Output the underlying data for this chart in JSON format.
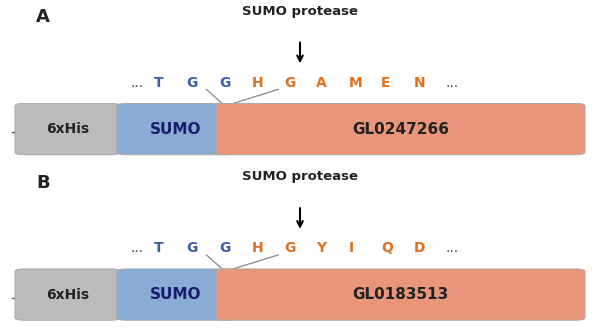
{
  "background_color": "#ffffff",
  "fig_w": 6.0,
  "fig_h": 3.31,
  "dpi": 100,
  "panels": [
    {
      "label": "A",
      "protease_text": "SUMO protease",
      "sequence_items": [
        {
          "char": "...",
          "color": "#444444",
          "bold": false,
          "dot": true
        },
        {
          "char": "T",
          "color": "#3a5ea8",
          "bold": true,
          "dot": false
        },
        {
          "char": "G",
          "color": "#3a5ea8",
          "bold": true,
          "dot": false
        },
        {
          "char": "G",
          "color": "#3a5ea8",
          "bold": true,
          "dot": false
        },
        {
          "char": "H",
          "color": "#e07020",
          "bold": true,
          "dot": false
        },
        {
          "char": "G",
          "color": "#e07020",
          "bold": true,
          "dot": false
        },
        {
          "char": "A",
          "color": "#e07020",
          "bold": true,
          "dot": false
        },
        {
          "char": "M",
          "color": "#e07020",
          "bold": true,
          "dot": false
        },
        {
          "char": "E",
          "color": "#e07020",
          "bold": true,
          "dot": false
        },
        {
          "char": "N",
          "color": "#e07020",
          "bold": true,
          "dot": false
        },
        {
          "char": "...",
          "color": "#444444",
          "bold": false,
          "dot": true
        }
      ],
      "cut_after_index": 3,
      "his_label": "6xHis",
      "sumo_label": "SUMO",
      "target_label": "GL0247266",
      "his_color": "#bbbbbb",
      "sumo_color": "#88acd4",
      "target_color": "#e8957a"
    },
    {
      "label": "B",
      "protease_text": "SUMO protease",
      "sequence_items": [
        {
          "char": "...",
          "color": "#444444",
          "bold": false,
          "dot": true
        },
        {
          "char": "T",
          "color": "#3a5ea8",
          "bold": true,
          "dot": false
        },
        {
          "char": "G",
          "color": "#3a5ea8",
          "bold": true,
          "dot": false
        },
        {
          "char": "G",
          "color": "#3a5ea8",
          "bold": true,
          "dot": false
        },
        {
          "char": "H",
          "color": "#e07020",
          "bold": true,
          "dot": false
        },
        {
          "char": "G",
          "color": "#e07020",
          "bold": true,
          "dot": false
        },
        {
          "char": "Y",
          "color": "#e07020",
          "bold": true,
          "dot": false
        },
        {
          "char": "I",
          "color": "#e07020",
          "bold": true,
          "dot": false
        },
        {
          "char": "Q",
          "color": "#e07020",
          "bold": true,
          "dot": false
        },
        {
          "char": "D",
          "color": "#e07020",
          "bold": true,
          "dot": false
        },
        {
          "char": "...",
          "color": "#444444",
          "bold": false,
          "dot": true
        }
      ],
      "cut_after_index": 3,
      "his_label": "6xHis",
      "sumo_label": "SUMO",
      "target_label": "GL0183513",
      "his_color": "#bbbbbb",
      "sumo_color": "#88acd4",
      "target_color": "#e8957a"
    }
  ]
}
